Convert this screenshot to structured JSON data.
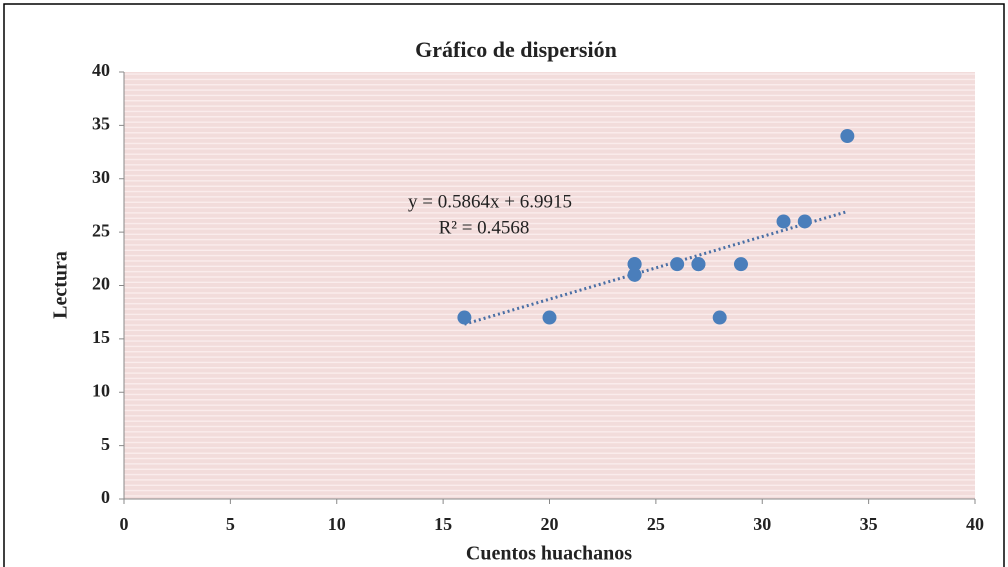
{
  "chart_data": {
    "type": "scatter",
    "title": "Gráfico de dispersión",
    "x_label": "Cuentos huachanos",
    "y_label": "Lectura",
    "series": [
      {
        "name": "Lectura",
        "color": "#4a7ebb",
        "x": [
          16,
          20,
          24,
          24,
          24,
          26,
          27,
          27,
          28,
          29,
          31,
          32,
          34
        ],
        "values": [
          17,
          17,
          22,
          21,
          22,
          22,
          22,
          22,
          17,
          22,
          26,
          26,
          34
        ]
      }
    ],
    "trendline": {
      "equation": "y = 0.5864x + 6.9915",
      "r2": "R² = 0.4568",
      "slope": 0.5864,
      "intercept": 6.9915,
      "x_range": [
        16,
        34
      ],
      "color": "#4a6fa5"
    },
    "xlim": [
      0,
      40
    ],
    "xticks": [
      0,
      5,
      10,
      15,
      20,
      25,
      30,
      35,
      40
    ],
    "ylim": [
      0,
      40
    ],
    "yticks": [
      0,
      5,
      10,
      15,
      20,
      25,
      30,
      35,
      40
    ]
  }
}
